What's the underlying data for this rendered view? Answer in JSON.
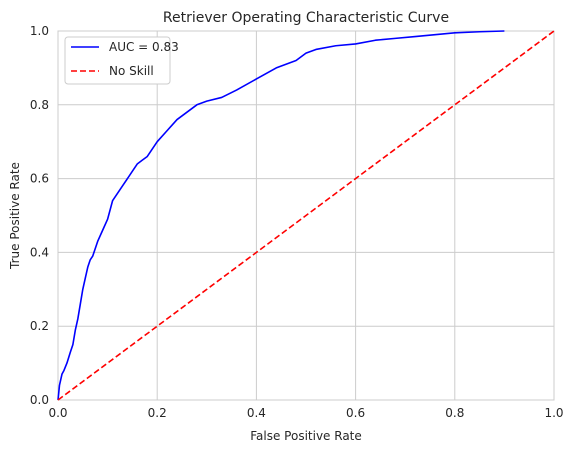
{
  "chart_data": {
    "type": "line",
    "title": "Retriever Operating Characteristic Curve",
    "xlabel": "False Positive Rate",
    "ylabel": "True Positive Rate",
    "xlim": [
      0.0,
      1.0
    ],
    "ylim": [
      0.0,
      1.0
    ],
    "xticks": [
      "0.0",
      "0.2",
      "0.4",
      "0.6",
      "0.8",
      "1.0"
    ],
    "yticks": [
      "0.0",
      "0.2",
      "0.4",
      "0.6",
      "0.8",
      "1.0"
    ],
    "grid": true,
    "legend_position": "upper-left",
    "series": [
      {
        "name": "AUC = 0.83",
        "color": "#0000ff",
        "line_style": "solid",
        "x": [
          0.0,
          0.003,
          0.008,
          0.012,
          0.018,
          0.025,
          0.03,
          0.035,
          0.04,
          0.045,
          0.05,
          0.055,
          0.06,
          0.065,
          0.07,
          0.08,
          0.09,
          0.1,
          0.11,
          0.12,
          0.13,
          0.14,
          0.15,
          0.16,
          0.17,
          0.18,
          0.2,
          0.22,
          0.24,
          0.26,
          0.28,
          0.3,
          0.33,
          0.36,
          0.4,
          0.44,
          0.48,
          0.5,
          0.52,
          0.56,
          0.6,
          0.64,
          0.68,
          0.72,
          0.76,
          0.8,
          0.85,
          0.9
        ],
        "y": [
          0.0,
          0.04,
          0.07,
          0.08,
          0.1,
          0.13,
          0.15,
          0.19,
          0.22,
          0.26,
          0.3,
          0.33,
          0.36,
          0.38,
          0.39,
          0.43,
          0.46,
          0.49,
          0.54,
          0.56,
          0.58,
          0.6,
          0.62,
          0.64,
          0.65,
          0.66,
          0.7,
          0.73,
          0.76,
          0.78,
          0.8,
          0.81,
          0.82,
          0.84,
          0.87,
          0.9,
          0.92,
          0.94,
          0.95,
          0.96,
          0.965,
          0.975,
          0.98,
          0.985,
          0.99,
          0.995,
          0.998,
          1.0
        ]
      },
      {
        "name": "No Skill",
        "color": "#ff0000",
        "line_style": "dashed",
        "x": [
          0.0,
          1.0
        ],
        "y": [
          0.0,
          1.0
        ]
      }
    ]
  }
}
